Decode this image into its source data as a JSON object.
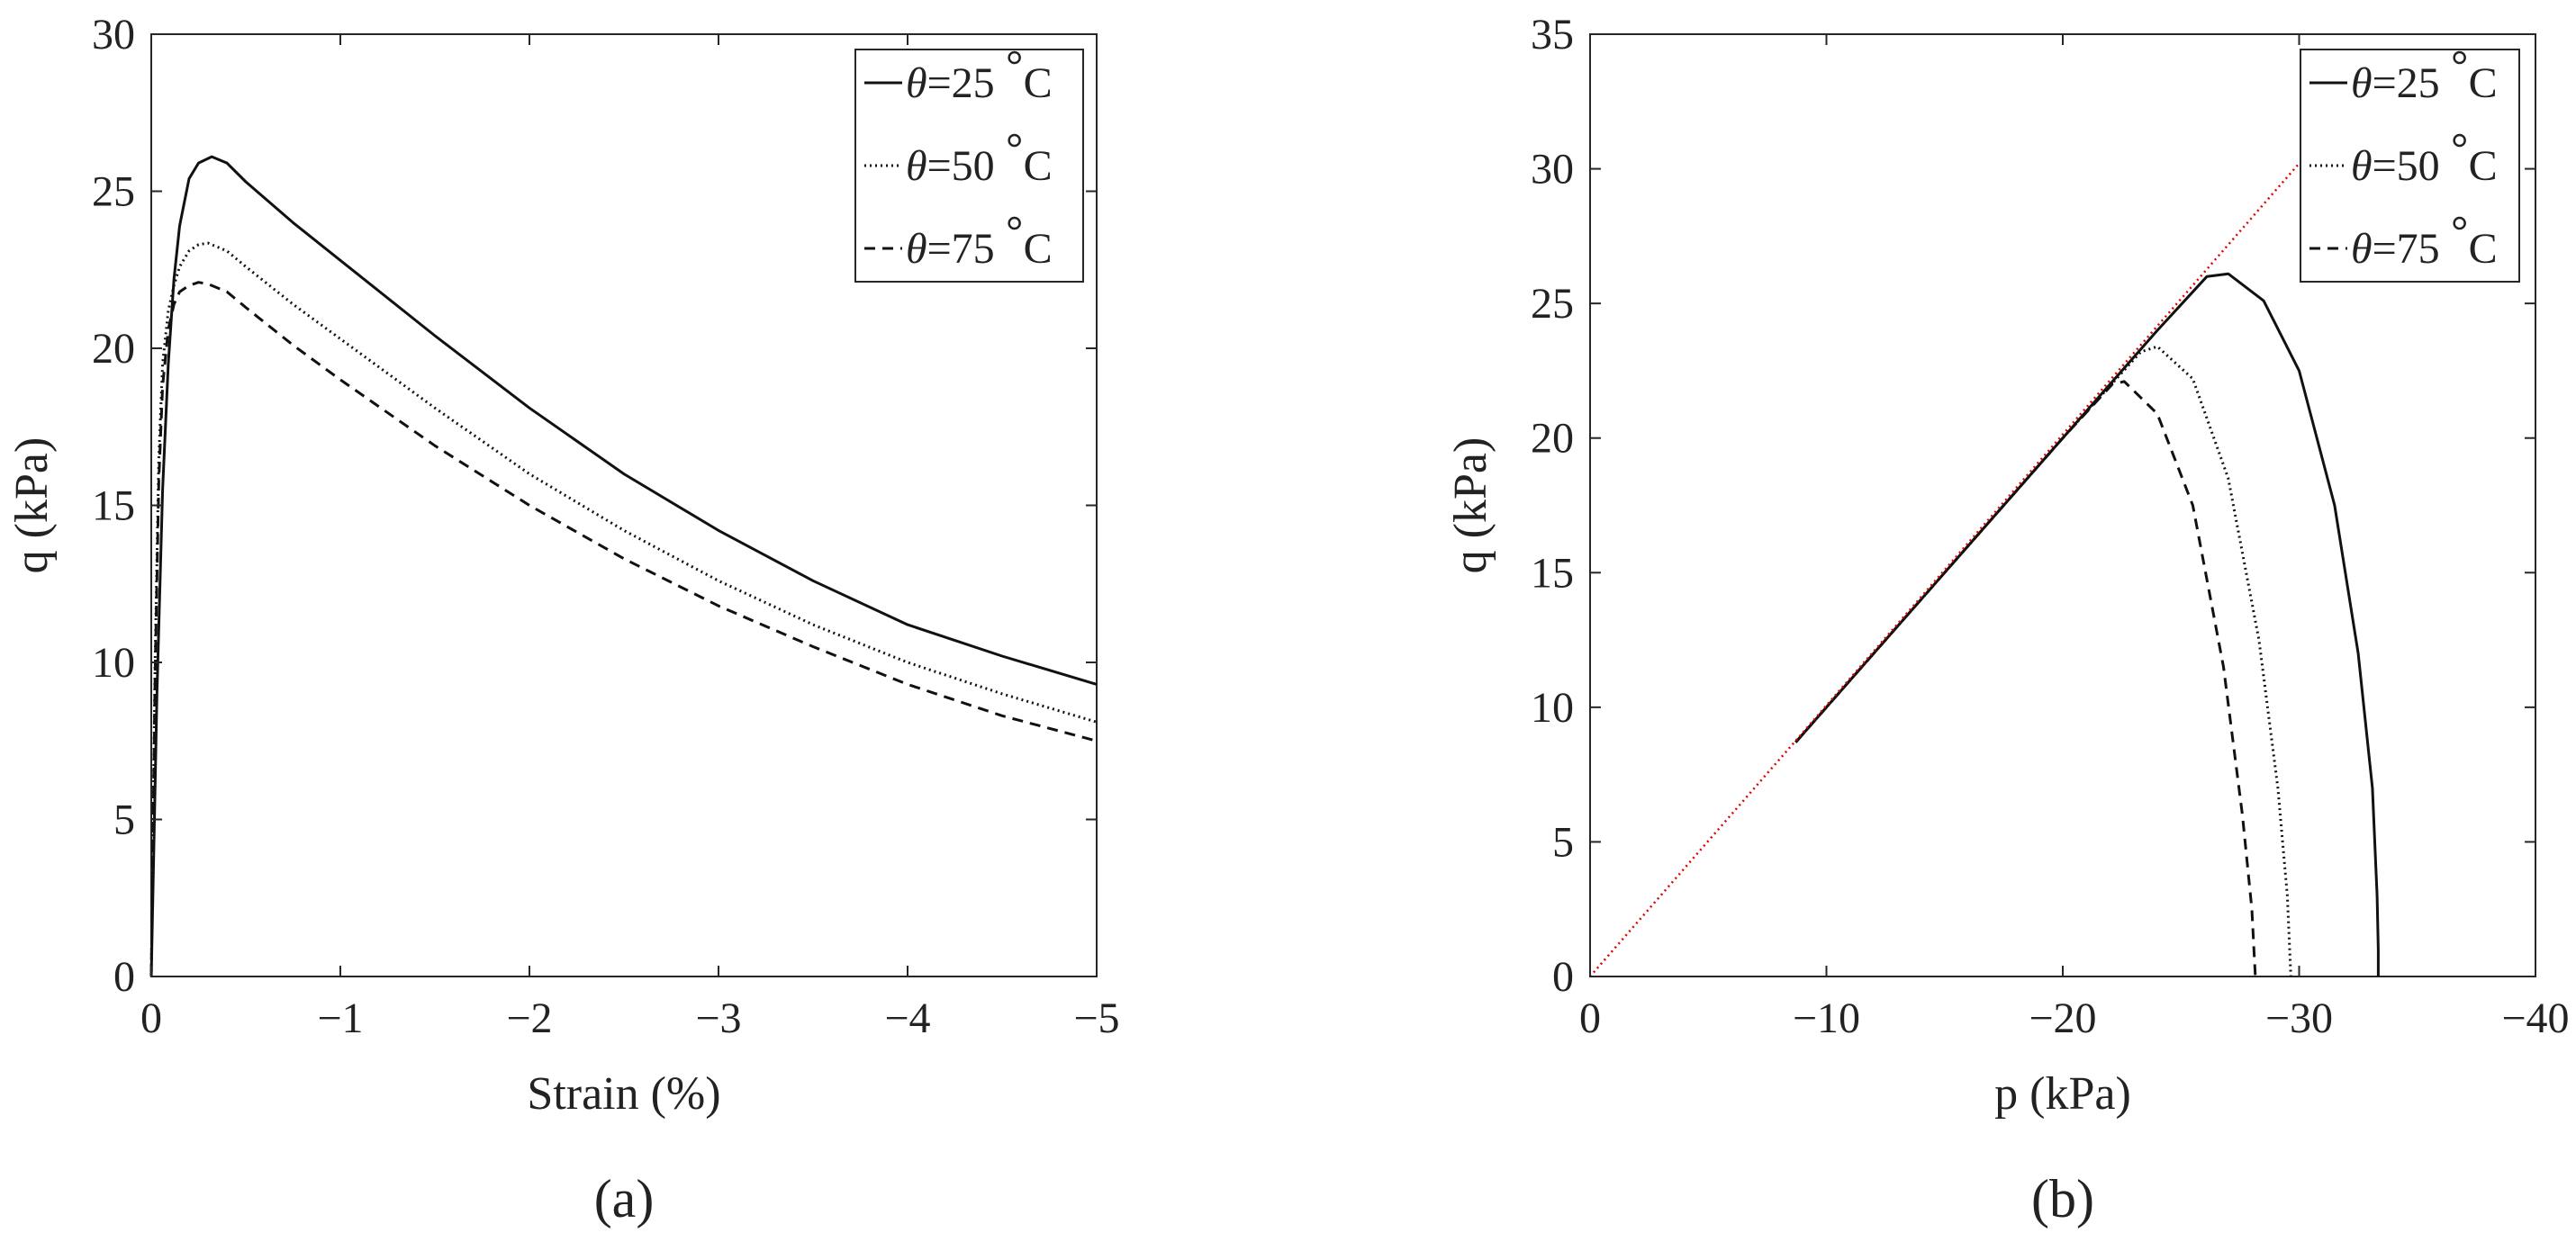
{
  "chart_data": [
    {
      "type": "line",
      "xlabel": "Strain (%)",
      "ylabel": "q (kPa)",
      "caption": "(a)",
      "xlim": [
        0,
        -5
      ],
      "ylim": [
        0,
        30
      ],
      "xticks": [
        0,
        -1,
        -2,
        -3,
        -4,
        -5
      ],
      "xtick_labels": [
        "0",
        "−1",
        "−2",
        "−3",
        "−4",
        "−5"
      ],
      "yticks": [
        0,
        5,
        10,
        15,
        20,
        25,
        30
      ],
      "ytick_labels": [
        "0",
        "5",
        "10",
        "15",
        "20",
        "25",
        "30"
      ],
      "grid": false,
      "legend_position": "top-right",
      "series": [
        {
          "name": "θ=25 °C",
          "label_theta": "θ",
          "label_value": "=25",
          "label_unit": "C",
          "style": "solid",
          "x": [
            0,
            -0.03,
            -0.06,
            -0.09,
            -0.12,
            -0.15,
            -0.2,
            -0.25,
            -0.32,
            -0.4,
            -0.5,
            -0.75,
            -1.0,
            -1.5,
            -2.0,
            -2.5,
            -3.0,
            -3.5,
            -4.0,
            -4.5,
            -5.0
          ],
          "y": [
            0,
            9.0,
            15.5,
            19.5,
            22.2,
            23.9,
            25.4,
            25.9,
            26.1,
            25.9,
            25.3,
            24.0,
            22.8,
            20.4,
            18.1,
            16.0,
            14.2,
            12.6,
            11.2,
            10.2,
            9.3
          ]
        },
        {
          "name": "θ=50 °C",
          "label_theta": "θ",
          "label_value": "=50",
          "label_unit": "C",
          "style": "dotted",
          "x": [
            0,
            -0.02,
            -0.04,
            -0.06,
            -0.09,
            -0.12,
            -0.15,
            -0.2,
            -0.25,
            -0.3,
            -0.4,
            -0.5,
            -0.75,
            -1.0,
            -1.5,
            -2.0,
            -2.5,
            -3.0,
            -3.5,
            -4.0,
            -4.5,
            -5.0
          ],
          "y": [
            0,
            10.0,
            16.5,
            19.5,
            21.2,
            22.0,
            22.6,
            23.1,
            23.3,
            23.35,
            23.1,
            22.6,
            21.4,
            20.3,
            18.1,
            16.0,
            14.2,
            12.6,
            11.2,
            10.0,
            9.0,
            8.1
          ]
        },
        {
          "name": "θ=75 °C",
          "label_theta": "θ",
          "label_value": "=75",
          "label_unit": "C",
          "style": "dashed",
          "x": [
            0,
            -0.02,
            -0.04,
            -0.06,
            -0.09,
            -0.12,
            -0.15,
            -0.2,
            -0.25,
            -0.3,
            -0.4,
            -0.5,
            -0.75,
            -1.0,
            -1.5,
            -2.0,
            -2.5,
            -3.0,
            -3.5,
            -4.0,
            -4.5,
            -5.0
          ],
          "y": [
            0,
            9.5,
            15.8,
            18.8,
            20.6,
            21.4,
            21.8,
            22.0,
            22.1,
            22.05,
            21.8,
            21.3,
            20.1,
            19.0,
            16.9,
            15.0,
            13.3,
            11.8,
            10.5,
            9.3,
            8.3,
            7.5
          ]
        }
      ]
    },
    {
      "type": "line",
      "xlabel": "p (kPa)",
      "ylabel": "q (kPa)",
      "caption": "(b)",
      "xlim": [
        0,
        -40
      ],
      "ylim": [
        0,
        35
      ],
      "xticks": [
        0,
        -10,
        -20,
        -30,
        -40
      ],
      "xtick_labels": [
        "0",
        "−10",
        "−20",
        "−30",
        "−40"
      ],
      "yticks": [
        0,
        5,
        10,
        15,
        20,
        25,
        30,
        35
      ],
      "ytick_labels": [
        "0",
        "5",
        "10",
        "15",
        "20",
        "25",
        "30",
        "35"
      ],
      "grid": false,
      "legend_position": "top-right",
      "series": [
        {
          "name": "θ=25 °C",
          "label_theta": "θ",
          "label_value": "=25",
          "label_unit": "C",
          "style": "solid",
          "x": [
            -8.7,
            -12,
            -16,
            -20,
            -24,
            -26.1,
            -27.0,
            -28.5,
            -30.0,
            -31.5,
            -32.5,
            -33.1,
            -33.3,
            -33.35,
            -33.35
          ],
          "y": [
            8.7,
            12,
            16,
            20,
            24,
            26.0,
            26.1,
            25.1,
            22.5,
            17.5,
            12.0,
            7.0,
            3.0,
            1.0,
            0
          ]
        },
        {
          "name": "θ=50 °C",
          "label_theta": "θ",
          "label_value": "=50",
          "label_unit": "C",
          "style": "dotted",
          "x": [
            -8.7,
            -12,
            -16,
            -20,
            -23.3,
            -24.0,
            -25.5,
            -27.0,
            -28.3,
            -29.1,
            -29.5,
            -29.6,
            -29.65
          ],
          "y": [
            8.7,
            12,
            16,
            20,
            23.2,
            23.4,
            22.2,
            18.5,
            12.5,
            7.0,
            3.0,
            1.0,
            0
          ]
        },
        {
          "name": "θ=75 °C",
          "label_theta": "θ",
          "label_value": "=75",
          "label_unit": "C",
          "style": "dashed",
          "x": [
            -8.7,
            -12,
            -16,
            -20,
            -22.1,
            -22.6,
            -24.0,
            -25.5,
            -26.8,
            -27.6,
            -28.0,
            -28.1,
            -28.15
          ],
          "y": [
            8.7,
            12,
            16,
            20,
            22.0,
            22.1,
            20.9,
            17.5,
            11.5,
            6.0,
            2.5,
            0.8,
            0
          ]
        },
        {
          "name": "",
          "style": "red-dotted",
          "color": "#e00000",
          "x": [
            0,
            -30
          ],
          "y": [
            0,
            30.2
          ]
        }
      ]
    }
  ]
}
